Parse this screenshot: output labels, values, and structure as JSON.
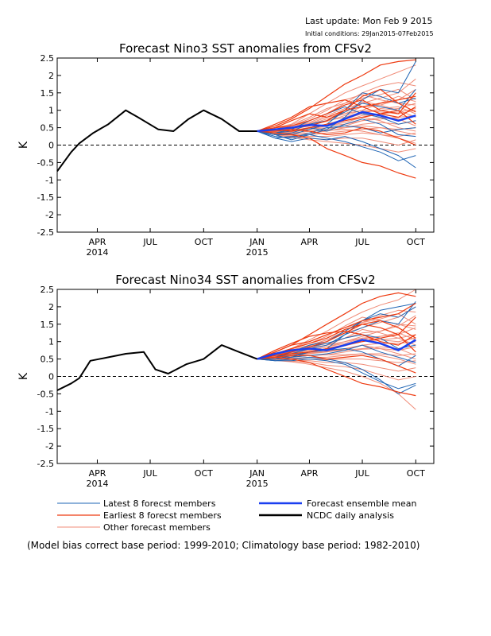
{
  "header": {
    "last_update": "Last update: Mon Feb 9 2015",
    "initial_conditions": "Initial conditions: 29Jan2015-07Feb2015"
  },
  "colors": {
    "latest": "#1e64b4",
    "earliest": "#ee3a10",
    "other": "#f08c78",
    "mean": "#1a3ff0",
    "observed": "#000000"
  },
  "legend": {
    "latest": "Latest 8 forecst members",
    "earliest": "Earliest 8 forecst members",
    "other": "Other forecast members",
    "mean": "Forecast ensemble mean",
    "observed": "NCDC daily analysis"
  },
  "footnote": "(Model bias correct base period: 1999-2010; Climatology base period: 1982-2010)",
  "chart_data": [
    {
      "type": "line",
      "title": "Forecast Nino3 SST anomalies from CFSv2",
      "ylabel": "K",
      "ylim": [
        -2.5,
        2.5
      ],
      "yticks": [
        "2.5",
        "2",
        "1.5",
        "1",
        "0.5",
        "0",
        "-0.5",
        "-1",
        "-1.5",
        "-2",
        "-2.5"
      ],
      "xlim": [
        "2014-01-22",
        "2015-11-01"
      ],
      "xticks": [
        {
          "label": "APR",
          "year": "2014",
          "date": "2014-04-01"
        },
        {
          "label": "JUL",
          "year": "",
          "date": "2014-07-01"
        },
        {
          "label": "OCT",
          "year": "",
          "date": "2014-10-01"
        },
        {
          "label": "JAN",
          "year": "2015",
          "date": "2015-01-01"
        },
        {
          "label": "APR",
          "year": "",
          "date": "2015-04-01"
        },
        {
          "label": "JUL",
          "year": "",
          "date": "2015-07-01"
        },
        {
          "label": "OCT",
          "year": "",
          "date": "2015-10-01"
        }
      ],
      "zero_line": "dashed",
      "observed": {
        "name": "NCDC daily analysis",
        "x": [
          "2014-01-22",
          "2014-02-15",
          "2014-03-01",
          "2014-03-25",
          "2014-04-20",
          "2014-05-20",
          "2014-06-10",
          "2014-07-15",
          "2014-08-10",
          "2014-09-05",
          "2014-10-01",
          "2014-11-01",
          "2014-12-01",
          "2015-01-01"
        ],
        "y": [
          -0.75,
          -0.2,
          0.05,
          0.35,
          0.6,
          1.0,
          0.8,
          0.45,
          0.4,
          0.75,
          1.0,
          0.75,
          0.4,
          0.4
        ]
      },
      "forecast_x": [
        "2015-01-01",
        "2015-02-01",
        "2015-03-01",
        "2015-04-01",
        "2015-05-01",
        "2015-06-01",
        "2015-07-01",
        "2015-08-01",
        "2015-09-01",
        "2015-10-01"
      ],
      "mean": {
        "name": "Forecast ensemble mean",
        "y": [
          0.4,
          0.45,
          0.5,
          0.58,
          0.55,
          0.75,
          0.95,
          0.85,
          0.7,
          0.85
        ]
      },
      "latest_members": [
        [
          0.4,
          0.3,
          0.15,
          0.3,
          0.45,
          0.8,
          1.3,
          1.6,
          1.5,
          2.4
        ],
        [
          0.4,
          0.2,
          0.1,
          0.2,
          0.15,
          0.25,
          0.1,
          -0.1,
          -0.3,
          -0.65
        ],
        [
          0.4,
          0.35,
          0.4,
          0.6,
          0.7,
          0.95,
          1.2,
          1.1,
          1.0,
          1.6
        ],
        [
          0.4,
          0.25,
          0.2,
          0.35,
          0.5,
          0.55,
          0.5,
          0.35,
          0.45,
          0.5
        ],
        [
          0.4,
          0.3,
          0.3,
          0.45,
          0.6,
          1.0,
          1.5,
          1.4,
          1.2,
          1.35
        ],
        [
          0.4,
          0.2,
          0.25,
          0.3,
          0.2,
          0.1,
          -0.05,
          -0.2,
          -0.45,
          -0.3
        ],
        [
          0.4,
          0.35,
          0.45,
          0.7,
          0.9,
          1.1,
          0.9,
          0.8,
          0.6,
          0.7
        ],
        [
          0.4,
          0.3,
          0.35,
          0.5,
          0.4,
          0.6,
          0.75,
          0.6,
          0.3,
          0.25
        ]
      ],
      "earliest_members": [
        [
          0.4,
          0.55,
          0.75,
          1.05,
          1.4,
          1.75,
          2.0,
          2.3,
          2.4,
          2.45
        ],
        [
          0.4,
          0.5,
          0.55,
          0.7,
          0.9,
          1.15,
          1.3,
          1.0,
          0.9,
          1.5
        ],
        [
          0.4,
          0.35,
          0.3,
          0.2,
          -0.1,
          -0.3,
          -0.5,
          -0.6,
          -0.8,
          -0.95
        ],
        [
          0.4,
          0.5,
          0.7,
          0.9,
          0.8,
          1.0,
          1.1,
          1.2,
          1.3,
          1.4
        ],
        [
          0.4,
          0.45,
          0.5,
          0.55,
          0.7,
          1.0,
          1.4,
          1.6,
          1.2,
          0.95
        ],
        [
          0.4,
          0.4,
          0.45,
          0.4,
          0.3,
          0.35,
          0.5,
          0.4,
          0.2,
          0.0
        ],
        [
          0.4,
          0.6,
          0.8,
          1.1,
          1.2,
          1.3,
          1.1,
          0.9,
          0.8,
          1.1
        ],
        [
          0.4,
          0.45,
          0.4,
          0.5,
          0.6,
          0.7,
          0.8,
          0.9,
          1.0,
          0.6
        ]
      ],
      "other_members": [
        [
          0.4,
          0.5,
          0.6,
          0.9,
          1.2,
          1.5,
          1.7,
          1.9,
          2.1,
          2.3
        ],
        [
          0.4,
          0.45,
          0.5,
          0.65,
          0.85,
          1.05,
          1.2,
          1.35,
          1.5,
          1.9
        ],
        [
          0.4,
          0.42,
          0.46,
          0.6,
          0.75,
          0.9,
          1.1,
          1.15,
          1.3,
          1.6
        ],
        [
          0.4,
          0.4,
          0.45,
          0.55,
          0.7,
          0.8,
          0.95,
          1.0,
          1.05,
          1.2
        ],
        [
          0.4,
          0.38,
          0.4,
          0.45,
          0.55,
          0.7,
          0.85,
          0.9,
          0.95,
          1.05
        ],
        [
          0.4,
          0.35,
          0.35,
          0.4,
          0.45,
          0.55,
          0.7,
          0.75,
          0.8,
          0.85
        ],
        [
          0.4,
          0.34,
          0.32,
          0.35,
          0.4,
          0.5,
          0.6,
          0.65,
          0.6,
          0.7
        ],
        [
          0.4,
          0.33,
          0.3,
          0.3,
          0.35,
          0.4,
          0.45,
          0.5,
          0.45,
          0.5
        ],
        [
          0.4,
          0.32,
          0.28,
          0.25,
          0.25,
          0.3,
          0.35,
          0.3,
          0.25,
          0.35
        ],
        [
          0.4,
          0.3,
          0.25,
          0.2,
          0.15,
          0.2,
          0.2,
          0.1,
          0.0,
          0.15
        ],
        [
          0.4,
          0.3,
          0.22,
          0.15,
          0.1,
          0.05,
          0.0,
          -0.1,
          -0.2,
          -0.1
        ],
        [
          0.4,
          0.45,
          0.55,
          0.75,
          1.0,
          1.3,
          1.45,
          1.3,
          1.2,
          1.15
        ],
        [
          0.4,
          0.42,
          0.5,
          0.7,
          0.9,
          1.2,
          1.5,
          1.7,
          1.8,
          1.7
        ],
        [
          0.4,
          0.4,
          0.5,
          0.62,
          0.8,
          0.9,
          1.0,
          0.95,
          0.9,
          1.0
        ],
        [
          0.4,
          0.38,
          0.42,
          0.5,
          0.6,
          0.75,
          0.9,
          1.05,
          1.1,
          0.9
        ],
        [
          0.4,
          0.36,
          0.4,
          0.48,
          0.55,
          0.6,
          0.7,
          0.8,
          0.75,
          0.55
        ],
        [
          0.4,
          0.35,
          0.38,
          0.45,
          0.5,
          0.5,
          0.55,
          0.5,
          0.4,
          0.3
        ],
        [
          0.4,
          0.33,
          0.35,
          0.4,
          0.42,
          0.45,
          0.4,
          0.3,
          0.2,
          0.05
        ],
        [
          0.4,
          0.45,
          0.58,
          0.8,
          1.05,
          1.2,
          1.35,
          1.45,
          1.6,
          1.3
        ],
        [
          0.4,
          0.43,
          0.5,
          0.6,
          0.7,
          0.95,
          1.25,
          1.15,
          1.0,
          0.8
        ],
        [
          0.4,
          0.4,
          0.42,
          0.5,
          0.55,
          0.65,
          0.8,
          0.7,
          0.5,
          0.4
        ],
        [
          0.4,
          0.41,
          0.48,
          0.58,
          0.68,
          0.85,
          1.0,
          1.2,
          1.4,
          1.25
        ]
      ]
    },
    {
      "type": "line",
      "title": "Forecast Nino34 SST anomalies from CFSv2",
      "ylabel": "K",
      "ylim": [
        -2.5,
        2.5
      ],
      "yticks": [
        "2.5",
        "2",
        "1.5",
        "1",
        "0.5",
        "0",
        "-0.5",
        "-1",
        "-1.5",
        "-2",
        "-2.5"
      ],
      "xlim": [
        "2014-01-22",
        "2015-11-01"
      ],
      "xticks": [
        {
          "label": "APR",
          "year": "2014",
          "date": "2014-04-01"
        },
        {
          "label": "JUL",
          "year": "",
          "date": "2014-07-01"
        },
        {
          "label": "OCT",
          "year": "",
          "date": "2014-10-01"
        },
        {
          "label": "JAN",
          "year": "2015",
          "date": "2015-01-01"
        },
        {
          "label": "APR",
          "year": "",
          "date": "2015-04-01"
        },
        {
          "label": "JUL",
          "year": "",
          "date": "2015-07-01"
        },
        {
          "label": "OCT",
          "year": "",
          "date": "2015-10-01"
        }
      ],
      "zero_line": "dashed",
      "observed": {
        "name": "NCDC daily analysis",
        "x": [
          "2014-01-22",
          "2014-02-15",
          "2014-03-01",
          "2014-03-20",
          "2014-04-20",
          "2014-05-20",
          "2014-06-20",
          "2014-07-10",
          "2014-08-01",
          "2014-09-01",
          "2014-10-01",
          "2014-11-01",
          "2014-12-01",
          "2015-01-01"
        ],
        "y": [
          -0.4,
          -0.2,
          -0.05,
          0.45,
          0.55,
          0.65,
          0.7,
          0.2,
          0.08,
          0.35,
          0.5,
          0.9,
          0.7,
          0.5
        ]
      },
      "forecast_x": [
        "2015-01-01",
        "2015-02-01",
        "2015-03-01",
        "2015-04-01",
        "2015-05-01",
        "2015-06-01",
        "2015-07-01",
        "2015-08-01",
        "2015-09-01",
        "2015-10-01"
      ],
      "mean": {
        "name": "Forecast ensemble mean",
        "y": [
          0.5,
          0.65,
          0.75,
          0.8,
          0.75,
          0.9,
          1.05,
          0.95,
          0.75,
          1.05
        ]
      },
      "latest_members": [
        [
          0.5,
          0.5,
          0.55,
          0.7,
          0.8,
          1.2,
          1.6,
          1.8,
          1.7,
          2.0
        ],
        [
          0.5,
          0.45,
          0.5,
          0.55,
          0.5,
          0.4,
          0.2,
          -0.1,
          -0.5,
          -0.25
        ],
        [
          0.5,
          0.55,
          0.65,
          0.8,
          0.9,
          1.2,
          1.4,
          1.6,
          1.5,
          2.15
        ],
        [
          0.5,
          0.5,
          0.6,
          0.7,
          0.75,
          0.8,
          0.7,
          0.5,
          0.3,
          0.6
        ],
        [
          0.5,
          0.55,
          0.7,
          0.9,
          1.0,
          1.3,
          1.6,
          1.9,
          2.0,
          2.1
        ],
        [
          0.5,
          0.45,
          0.45,
          0.5,
          0.45,
          0.35,
          0.1,
          -0.15,
          -0.35,
          -0.2
        ],
        [
          0.5,
          0.55,
          0.7,
          0.85,
          0.95,
          1.1,
          1.2,
          1.1,
          0.8,
          0.9
        ],
        [
          0.5,
          0.5,
          0.55,
          0.6,
          0.65,
          0.75,
          0.9,
          0.7,
          0.55,
          0.4
        ]
      ],
      "earliest_members": [
        [
          0.5,
          0.7,
          0.9,
          1.2,
          1.5,
          1.8,
          2.1,
          2.3,
          2.4,
          2.3
        ],
        [
          0.5,
          0.65,
          0.8,
          0.95,
          1.1,
          1.35,
          1.5,
          1.4,
          1.2,
          1.7
        ],
        [
          0.5,
          0.55,
          0.5,
          0.4,
          0.2,
          0.0,
          -0.2,
          -0.3,
          -0.45,
          -0.55
        ],
        [
          0.5,
          0.7,
          0.9,
          1.0,
          1.2,
          1.4,
          1.6,
          1.7,
          1.8,
          2.1
        ],
        [
          0.5,
          0.6,
          0.7,
          0.85,
          1.0,
          1.25,
          1.5,
          1.6,
          1.4,
          1.1
        ],
        [
          0.5,
          0.55,
          0.6,
          0.6,
          0.5,
          0.55,
          0.6,
          0.5,
          0.3,
          0.1
        ],
        [
          0.5,
          0.75,
          0.95,
          1.15,
          1.25,
          1.3,
          1.2,
          1.0,
          0.9,
          1.2
        ],
        [
          0.5,
          0.6,
          0.65,
          0.7,
          0.8,
          0.9,
          1.0,
          1.1,
          1.2,
          0.7
        ]
      ],
      "other_members": [
        [
          0.5,
          0.65,
          0.8,
          1.05,
          1.3,
          1.6,
          1.85,
          2.05,
          2.2,
          2.5
        ],
        [
          0.5,
          0.6,
          0.75,
          0.9,
          1.05,
          1.25,
          1.4,
          1.55,
          1.7,
          2.0
        ],
        [
          0.5,
          0.58,
          0.7,
          0.82,
          0.95,
          1.1,
          1.25,
          1.3,
          1.45,
          1.75
        ],
        [
          0.5,
          0.56,
          0.65,
          0.75,
          0.85,
          0.95,
          1.1,
          1.15,
          1.2,
          1.4
        ],
        [
          0.5,
          0.55,
          0.6,
          0.7,
          0.78,
          0.88,
          1.0,
          1.05,
          1.1,
          1.2
        ],
        [
          0.5,
          0.53,
          0.58,
          0.65,
          0.7,
          0.78,
          0.9,
          0.95,
          0.95,
          1.0
        ],
        [
          0.5,
          0.52,
          0.55,
          0.6,
          0.62,
          0.7,
          0.78,
          0.8,
          0.75,
          0.85
        ],
        [
          0.5,
          0.5,
          0.52,
          0.55,
          0.55,
          0.6,
          0.65,
          0.65,
          0.6,
          0.65
        ],
        [
          0.5,
          0.49,
          0.5,
          0.5,
          0.48,
          0.5,
          0.5,
          0.45,
          0.4,
          0.45
        ],
        [
          0.5,
          0.48,
          0.47,
          0.45,
          0.4,
          0.4,
          0.35,
          0.25,
          0.15,
          0.25
        ],
        [
          0.5,
          0.47,
          0.44,
          0.4,
          0.32,
          0.28,
          0.2,
          0.05,
          -0.1,
          0.0
        ],
        [
          0.5,
          0.46,
          0.42,
          0.35,
          0.25,
          0.15,
          0.0,
          -0.2,
          -0.5,
          -0.95
        ],
        [
          0.5,
          0.62,
          0.78,
          0.95,
          1.15,
          1.45,
          1.7,
          1.6,
          1.5,
          1.45
        ],
        [
          0.5,
          0.6,
          0.72,
          0.88,
          1.05,
          1.3,
          1.55,
          1.75,
          1.9,
          1.85
        ],
        [
          0.5,
          0.57,
          0.66,
          0.78,
          0.9,
          1.0,
          1.1,
          1.05,
          1.0,
          1.1
        ],
        [
          0.5,
          0.55,
          0.62,
          0.72,
          0.8,
          0.92,
          1.05,
          1.15,
          1.25,
          1.05
        ],
        [
          0.5,
          0.54,
          0.6,
          0.66,
          0.72,
          0.75,
          0.8,
          0.85,
          0.8,
          0.6
        ],
        [
          0.5,
          0.52,
          0.56,
          0.6,
          0.62,
          0.62,
          0.65,
          0.6,
          0.5,
          0.35
        ],
        [
          0.5,
          0.63,
          0.8,
          1.0,
          1.2,
          1.4,
          1.55,
          1.65,
          1.8,
          1.5
        ],
        [
          0.5,
          0.58,
          0.68,
          0.8,
          0.9,
          1.1,
          1.35,
          1.25,
          1.1,
          0.9
        ],
        [
          0.5,
          0.55,
          0.6,
          0.68,
          0.72,
          0.8,
          0.9,
          0.8,
          0.65,
          0.5
        ],
        [
          0.5,
          0.57,
          0.65,
          0.75,
          0.85,
          1.0,
          1.15,
          1.3,
          1.5,
          1.35
        ]
      ]
    }
  ]
}
